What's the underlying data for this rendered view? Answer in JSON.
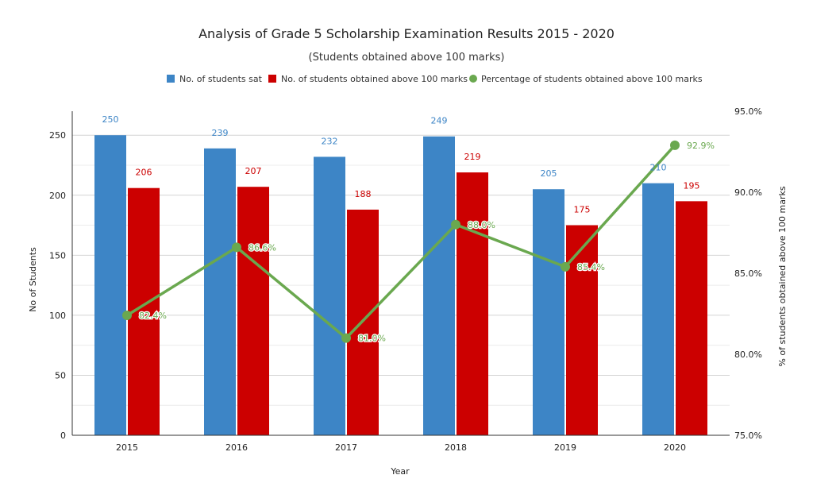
{
  "chart_data": {
    "type": "bar",
    "title": "Analysis of Grade 5 Scholarship Examination Results 2015 - 2020",
    "subtitle": "(Students obtained above 100 marks)",
    "xlabel": "Year",
    "ylabel": "No of Students",
    "y2label": "% of students obtained above 100 marks",
    "categories": [
      "2015",
      "2016",
      "2017",
      "2018",
      "2019",
      "2020"
    ],
    "ylim": [
      0,
      270
    ],
    "yticks": [
      0,
      50,
      100,
      150,
      200,
      250
    ],
    "y2lim": [
      75.0,
      95.0
    ],
    "y2ticks": [
      "75.0%",
      "80.0%",
      "85.0%",
      "90.0%",
      "95.0%"
    ],
    "legend_position": "top",
    "series": [
      {
        "name": "No. of students sat",
        "type": "bar",
        "axis": "left",
        "color": "#3d85c6",
        "label_color": "#3d85c6",
        "values": [
          250,
          239,
          232,
          249,
          205,
          210
        ]
      },
      {
        "name": "No. of students obtained above 100 marks",
        "type": "bar",
        "axis": "left",
        "color": "#cc0000",
        "label_color": "#cc0000",
        "values": [
          206,
          207,
          188,
          219,
          175,
          195
        ]
      },
      {
        "name": "Percentage of students obtained above 100 marks",
        "type": "line",
        "axis": "right",
        "color": "#6aa84f",
        "label_color": "#6aa84f",
        "values": [
          82.4,
          86.6,
          81.0,
          88.0,
          85.4,
          92.9
        ],
        "labels": [
          "82.4%",
          "86.6%",
          "81.0%",
          "88.0%",
          "85.4%",
          "92.9%"
        ]
      }
    ]
  }
}
